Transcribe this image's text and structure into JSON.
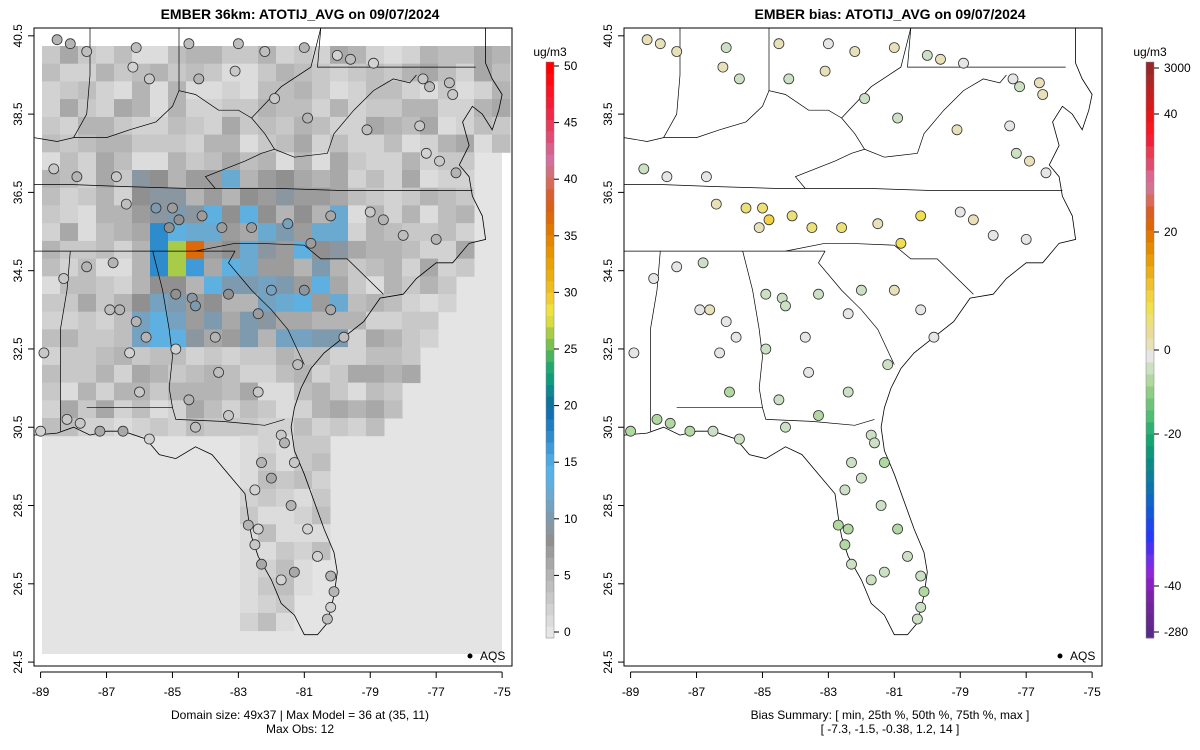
{
  "panels": [
    {
      "title": "EMBER 36km: ATOTIJ_AVG on 09/07/2024",
      "subtitle_lines": [
        "Domain size: 49x37 | Max Model = 36 at (35, 11)",
        "Max Obs: 12"
      ],
      "colorbar": {
        "units": "ug/m3",
        "ticks": [
          "0",
          "5",
          "10",
          "15",
          "20",
          "25",
          "30",
          "35",
          "40",
          "45",
          "50"
        ],
        "colors": [
          "#e6e6e6",
          "#dcdcdc",
          "#d2d2d2",
          "#c8c8c8",
          "#bebebe",
          "#b4b4b4",
          "#a8a8a8",
          "#9c9c9c",
          "#909090",
          "#8a96a0",
          "#7e9aae",
          "#74a2c0",
          "#6aaad0",
          "#5eb0e0",
          "#56b2e8",
          "#4ea8e2",
          "#3e9ad8",
          "#2e8ccc",
          "#1e7ec0",
          "#1270b0",
          "#0e7498",
          "#0e8890",
          "#109c7c",
          "#20a870",
          "#48b460",
          "#78c050",
          "#a8cc48",
          "#d8dc40",
          "#f0e040",
          "#f2cc30",
          "#eebc20",
          "#eaae10",
          "#e8a208",
          "#e69400",
          "#e48600",
          "#e07800",
          "#dc6a08",
          "#d86018",
          "#d86030",
          "#d66c58",
          "#d27080",
          "#d270a0",
          "#d8608c",
          "#e04c74",
          "#e83c5c",
          "#f02848",
          "#f41c34",
          "#f81420",
          "#fc0a10",
          "#ff0000"
        ]
      },
      "legend_label": "AQS"
    },
    {
      "title": "EMBER bias: ATOTIJ_AVG on 09/07/2024",
      "subtitle_lines": [
        "Bias Summary: [ min, 25th %, 50th %, 75th %, max ]",
        "[ -7.3,   -1.5,   -0.38,   1.2,   14 ]"
      ],
      "colorbar": {
        "units": "ug/m3",
        "ticks": [
          "-280",
          "-40",
          "-20",
          "0",
          "20",
          "40",
          "3000"
        ],
        "colors": [
          "#5a2a88",
          "#64288e",
          "#6e2698",
          "#7c22a8",
          "#8a20c0",
          "#8c28d8",
          "#7030e8",
          "#4c30f0",
          "#2838f8",
          "#1c48ea",
          "#1458d8",
          "#1066c4",
          "#0e72ae",
          "#0e7e9a",
          "#0e8a86",
          "#10967a",
          "#18a470",
          "#30b070",
          "#50bc74",
          "#70c47a",
          "#90ce88",
          "#b0d8a0",
          "#cce0c4",
          "#e6e6e6",
          "#e8e0b8",
          "#eadc98",
          "#ece078",
          "#f0e050",
          "#f2d240",
          "#f0c030",
          "#ecae18",
          "#e89c08",
          "#e68a00",
          "#e27800",
          "#dc6608",
          "#d85e28",
          "#d86c58",
          "#d27490",
          "#d86890",
          "#e04c70",
          "#e83c50",
          "#f02038",
          "#f81820",
          "#e81818",
          "#d01c1c",
          "#c02020",
          "#a82828",
          "#982828"
        ]
      },
      "legend_label": "AQS"
    }
  ],
  "axes": {
    "x_ticks": [
      "-89",
      "-87",
      "-85",
      "-83",
      "-81",
      "-79",
      "-77",
      "-75"
    ],
    "y_ticks": [
      "24.5",
      "26.5",
      "28.5",
      "30.5",
      "32.5",
      "34.5",
      "36.5",
      "38.5",
      "40.5"
    ]
  },
  "chart_data": [
    {
      "type": "heatmap",
      "title": "EMBER 36km: ATOTIJ_AVG on 09/07/2024",
      "xlabel": "",
      "ylabel": "",
      "xlim": [
        -89.2,
        -74.7
      ],
      "ylim": [
        24.4,
        40.7
      ],
      "units": "ug/m3",
      "colorbar_range": [
        0,
        50
      ],
      "domain_size": "49x37",
      "max_model": 36,
      "max_obs": 12,
      "legend": "bottom-right"
    },
    {
      "type": "scatter",
      "title": "EMBER bias: ATOTIJ_AVG on 09/07/2024",
      "xlabel": "",
      "ylabel": "",
      "xlim": [
        -89.2,
        -74.7
      ],
      "ylim": [
        24.4,
        40.7
      ],
      "units": "ug/m3",
      "bias_summary": {
        "min": -7.3,
        "p25": -1.5,
        "p50": -0.38,
        "p75": 1.2,
        "max": 14
      },
      "legend": "bottom-right"
    }
  ]
}
